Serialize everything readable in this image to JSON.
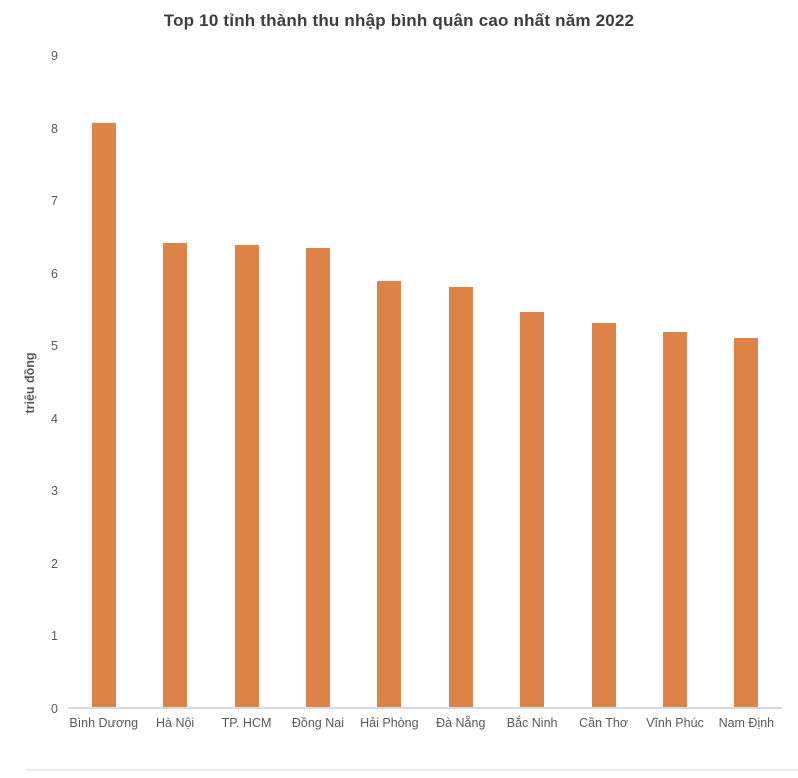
{
  "chart_data": {
    "type": "bar",
    "title": "Top 10 tỉnh thành thu nhập bình quân cao nhất năm 2022",
    "xlabel": "",
    "ylabel": "triệu đồng",
    "categories": [
      "Bình Dương",
      "Hà Nội",
      "TP. HCM",
      "Đồng Nai",
      "Hải Phòng",
      "Đà Nẵng",
      "Bắc Ninh",
      "Cần Thơ",
      "Vĩnh Phúc",
      "Nam Định"
    ],
    "values": [
      8.08,
      6.41,
      6.39,
      6.34,
      5.89,
      5.8,
      5.46,
      5.31,
      5.18,
      5.1
    ],
    "ylim": [
      0,
      9
    ],
    "yticks": [
      0,
      1,
      2,
      3,
      4,
      5,
      6,
      7,
      8,
      9
    ],
    "grid": false,
    "legend": false,
    "bar_color": "#DD8347"
  },
  "colors": {
    "background": "#FFFFFF",
    "bar": "#DD8347",
    "title_text": "#3D3D3D",
    "axis_text": "#595959",
    "axis_line": "#D9D9D9",
    "bottom_divider": "#EAECF0"
  }
}
